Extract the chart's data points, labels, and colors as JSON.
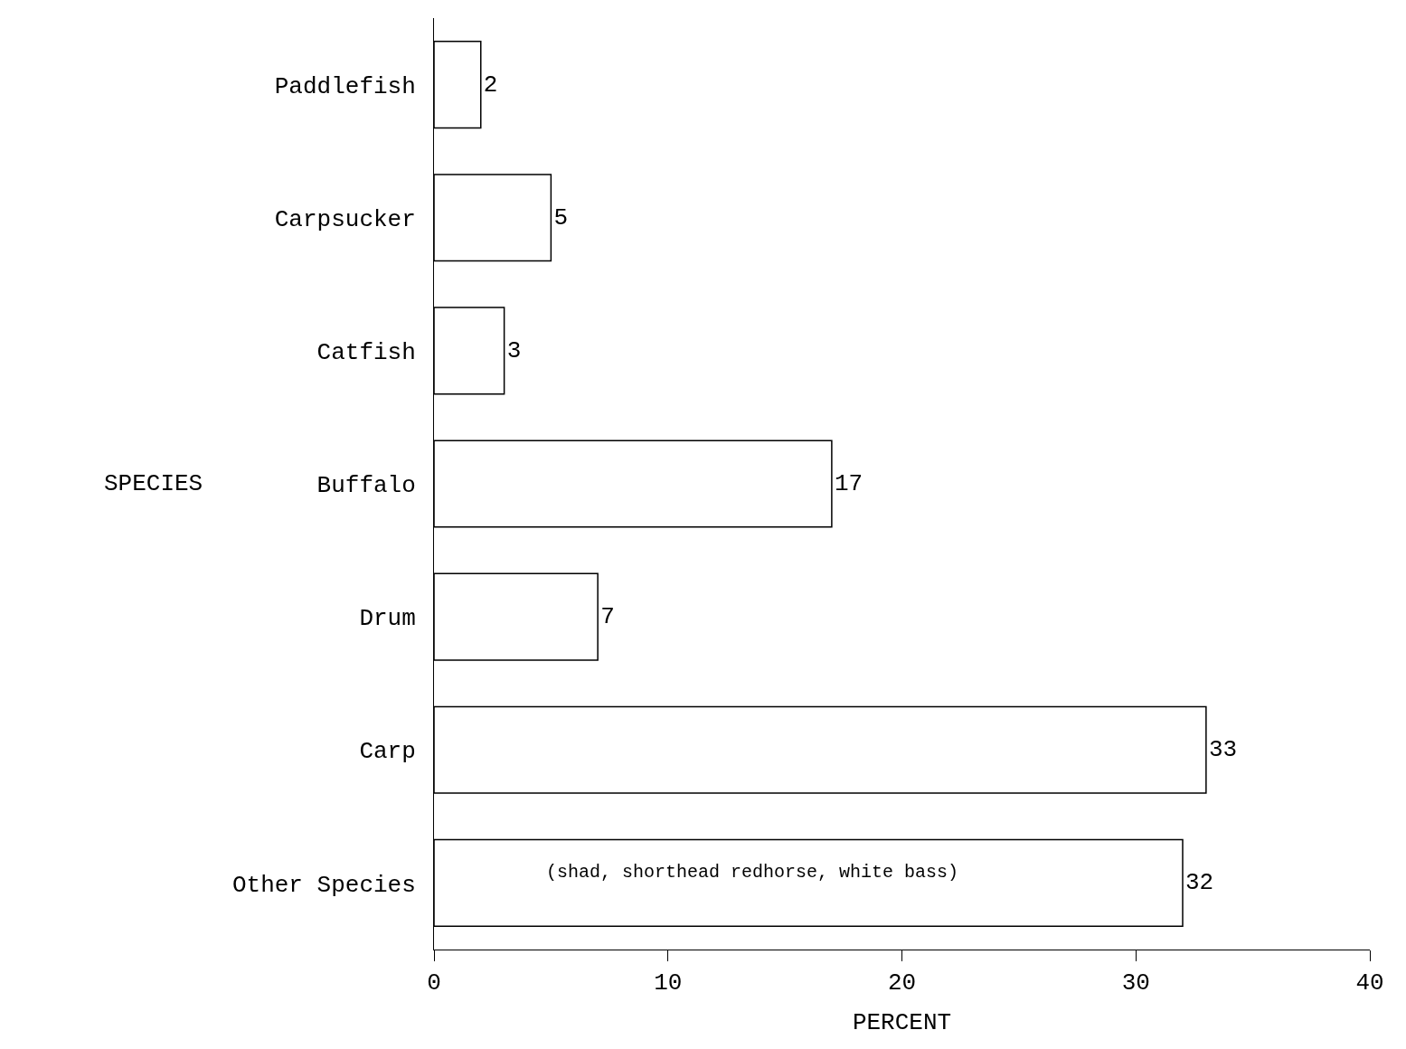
{
  "chart_data": {
    "type": "bar",
    "orientation": "horizontal",
    "categories": [
      "Paddlefish",
      "Carpsucker",
      "Catfish",
      "Buffalo",
      "Drum",
      "Carp",
      "Other Species"
    ],
    "values": [
      2,
      5,
      3,
      17,
      7,
      33,
      32
    ],
    "color": "#ffffff",
    "xlabel": "PERCENT",
    "ylabel": "SPECIES",
    "xlim": [
      0,
      40
    ],
    "xticks": [
      0,
      10,
      20,
      30,
      40
    ],
    "data_labels": true,
    "grid": false,
    "annotations": [
      "(shad, shorthead redhorse, white bass)"
    ]
  }
}
